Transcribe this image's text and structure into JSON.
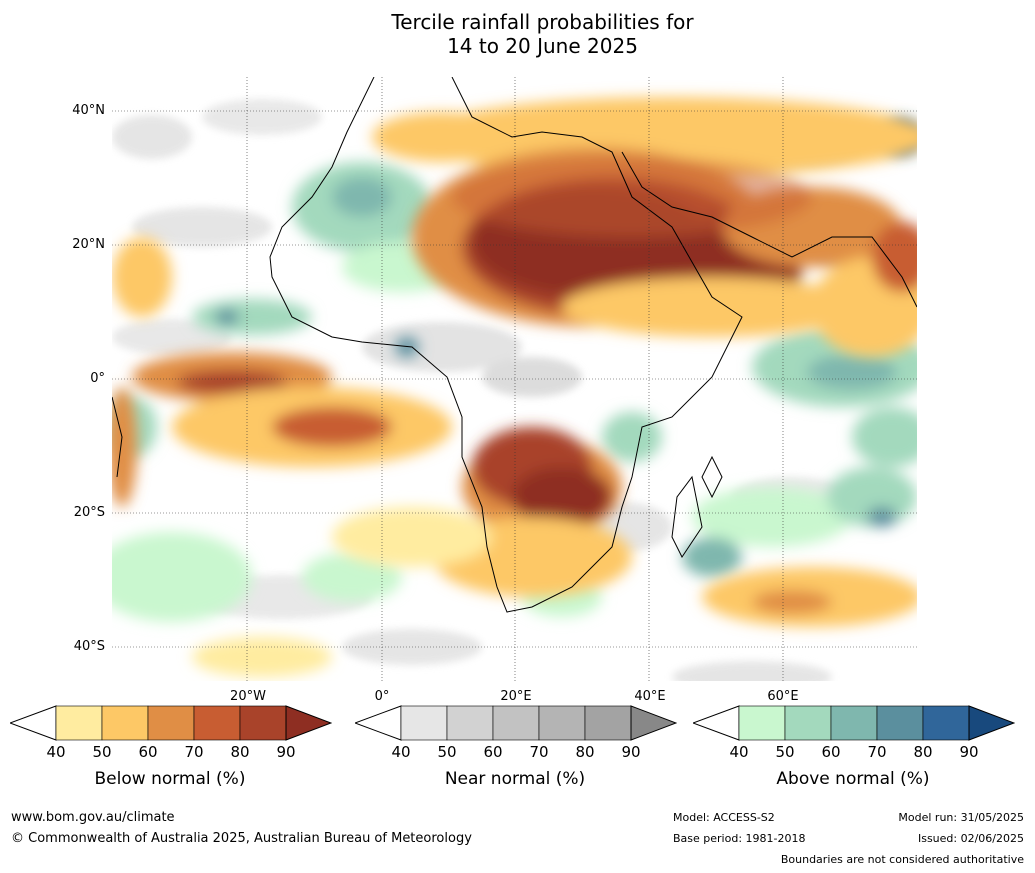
{
  "title": {
    "line1": "Tercile rainfall probabilities for",
    "line2": "14 to 20 June 2025"
  },
  "map": {
    "lat_labels": [
      "40°N",
      "20°N",
      "0°",
      "20°S",
      "40°S"
    ],
    "lon_labels": [
      "20°W",
      "0°",
      "20°E",
      "40°E",
      "60°E"
    ],
    "dominant_category_by_region": {
      "sahara_arabia_middle_east": "below_normal",
      "southern_central_africa": "below_normal",
      "equatorial_atlantic": "below_normal",
      "west_africa_sahel": "above_normal",
      "western_indian_ocean": "above_normal",
      "south_atlantic": "near_normal"
    }
  },
  "colorbars": [
    {
      "label": "Below normal (%)",
      "ticks": [
        "40",
        "50",
        "60",
        "70",
        "80",
        "90"
      ],
      "colors": [
        "#ffffff",
        "#ffeca0",
        "#fdc866",
        "#e08e45",
        "#c85d32",
        "#a9432a",
        "#8e2e22"
      ]
    },
    {
      "label": "Near normal (%)",
      "ticks": [
        "40",
        "50",
        "60",
        "70",
        "80",
        "90"
      ],
      "colors": [
        "#ffffff",
        "#e6e6e6",
        "#d2d2d2",
        "#c2c2c2",
        "#b4b4b4",
        "#a3a3a3",
        "#888888"
      ]
    },
    {
      "label": "Above normal (%)",
      "ticks": [
        "40",
        "50",
        "60",
        "70",
        "80",
        "90"
      ],
      "colors": [
        "#ffffff",
        "#c9f7cf",
        "#a3d9bd",
        "#7fb7ae",
        "#5b8f9e",
        "#30669a",
        "#18497d"
      ]
    }
  ],
  "footer": {
    "website": "www.bom.gov.au/climate",
    "copyright": "© Commonwealth of Australia 2025, Australian Bureau of Meteorology",
    "model": "Model: ACCESS-S2",
    "base_period": "Base period: 1981-2018",
    "model_run": "Model run: 31/05/2025",
    "issued": "Issued: 02/06/2025",
    "disclaimer": "Boundaries are not considered authoritative"
  }
}
